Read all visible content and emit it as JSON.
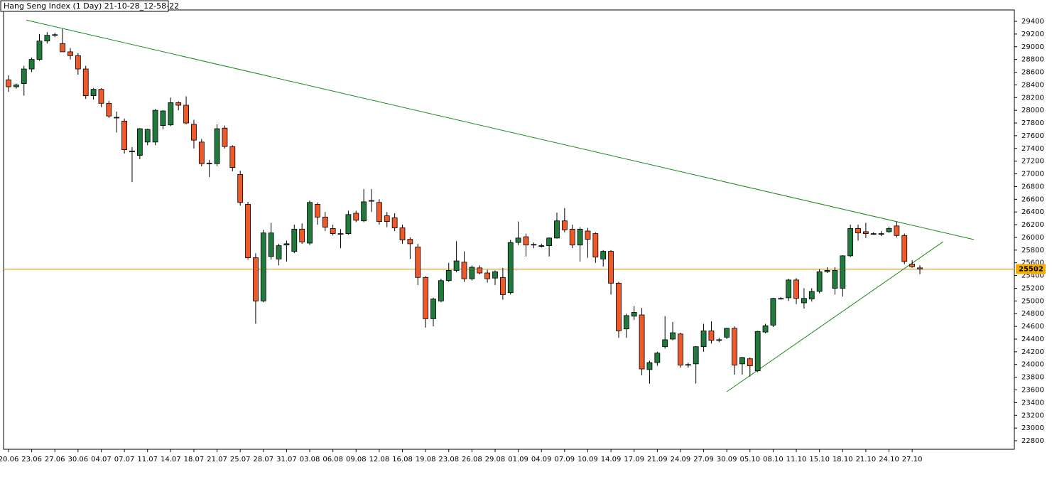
{
  "chart_data": {
    "type": "candlestick",
    "title": "Hang Seng Index (1 Day) 21-10-28_12-58-22",
    "categories": [
      "20.06",
      null,
      null,
      "23.06",
      null,
      null,
      "27.06",
      null,
      null,
      "30.06",
      null,
      null,
      "04.07",
      null,
      null,
      "07.07",
      null,
      null,
      "11.07",
      null,
      null,
      "14.07",
      null,
      null,
      "18.07",
      null,
      null,
      "21.07",
      null,
      null,
      "25.07",
      null,
      null,
      "28.07",
      null,
      null,
      "31.07",
      null,
      null,
      "03.08",
      null,
      null,
      "06.08",
      null,
      null,
      "09.08",
      null,
      null,
      "12.08",
      null,
      null,
      "16.08",
      null,
      null,
      "19.08",
      null,
      null,
      "23.08",
      null,
      null,
      "26.08",
      null,
      null,
      "29.08",
      null,
      null,
      "01.09",
      null,
      null,
      "04.09",
      null,
      null,
      "07.09",
      null,
      null,
      "10.09",
      null,
      null,
      "14.09",
      null,
      null,
      "17.09",
      null,
      null,
      "21.09",
      null,
      null,
      "24.09",
      null,
      null,
      "27.09",
      null,
      null,
      "30.09",
      null,
      null,
      "05.10",
      null,
      null,
      "08.10",
      null,
      null,
      "11.10",
      null,
      null,
      "15.10",
      null,
      null,
      "18.10",
      null,
      null,
      "21.10",
      null,
      null,
      "24.10",
      null,
      null,
      "27.10",
      null
    ],
    "open": [
      28480,
      28370,
      28420,
      28650,
      28800,
      29090,
      29180,
      29050,
      28920,
      28860,
      28650,
      28230,
      28330,
      28110,
      27880,
      27830,
      27350,
      27290,
      27500,
      27500,
      27760,
      27770,
      28120,
      28080,
      27780,
      27500,
      27160,
      27160,
      27720,
      27430,
      26990,
      26520,
      25680,
      25000,
      25700,
      25660,
      25880,
      25780,
      26130,
      25910,
      26520,
      26320,
      26140,
      26060,
      26060,
      26380,
      26260,
      26570,
      26550,
      26340,
      26310,
      26150,
      25970,
      25850,
      25370,
      24720,
      25000,
      25320,
      25480,
      25610,
      25350,
      25520,
      25440,
      25360,
      25370,
      25130,
      25920,
      26010,
      25890,
      25870,
      25870,
      25990,
      26260,
      26130,
      25880,
      26100,
      26060,
      25660,
      25780,
      25280,
      24560,
      24760,
      24780,
      23920,
      24030,
      24280,
      24400,
      24480,
      23990,
      24010,
      24280,
      24530,
      24380,
      24430,
      24570,
      24010,
      24090,
      23900,
      24510,
      24620,
      25040,
      25050,
      25330,
      24970,
      25030,
      25150,
      25460,
      25200,
      25200,
      25710,
      26140,
      26090,
      26060,
      26060,
      26090,
      26180,
      26030,
      25580,
      25520
    ],
    "high": [
      28550,
      28420,
      28700,
      28830,
      29200,
      29230,
      29220,
      29280,
      28980,
      28900,
      28700,
      28350,
      28350,
      28150,
      27980,
      27870,
      27420,
      27720,
      27710,
      28020,
      28000,
      28200,
      28140,
      28220,
      27850,
      27550,
      27220,
      27780,
      27760,
      27450,
      27050,
      26560,
      25750,
      26120,
      26230,
      25900,
      25950,
      26200,
      26220,
      26580,
      26550,
      26400,
      26200,
      26130,
      26420,
      26420,
      26760,
      26760,
      26600,
      26400,
      26380,
      26200,
      26000,
      25900,
      25390,
      25050,
      25350,
      25600,
      25940,
      25780,
      25560,
      25560,
      25490,
      25480,
      25520,
      25960,
      26250,
      26060,
      25920,
      25900,
      26000,
      26390,
      26460,
      26200,
      26160,
      26150,
      26080,
      25800,
      25800,
      25300,
      24800,
      24920,
      24890,
      24060,
      24200,
      24760,
      24670,
      24500,
      24030,
      24290,
      24640,
      24680,
      24420,
      24580,
      24600,
      24120,
      24110,
      24530,
      24640,
      25050,
      25060,
      25350,
      25360,
      25200,
      25200,
      25500,
      25530,
      25530,
      25720,
      26200,
      26200,
      26230,
      26080,
      26100,
      26170,
      26250,
      26060,
      25640,
      25560
    ],
    "low": [
      28290,
      28340,
      28230,
      28600,
      28780,
      29050,
      29150,
      28950,
      28800,
      28560,
      28180,
      28170,
      28050,
      27880,
      27650,
      27320,
      26870,
      27230,
      27450,
      27450,
      27700,
      27750,
      28000,
      27780,
      27400,
      27120,
      26950,
      27120,
      27400,
      27040,
      26500,
      25650,
      24640,
      24980,
      25650,
      25560,
      25620,
      25750,
      25900,
      25880,
      26200,
      26100,
      26030,
      25830,
      26040,
      26240,
      26240,
      26400,
      26200,
      26160,
      26100,
      25900,
      25660,
      25250,
      24580,
      24600,
      24980,
      25300,
      25450,
      25300,
      25320,
      25420,
      25290,
      25250,
      25020,
      25100,
      25880,
      25700,
      25830,
      25840,
      25700,
      25980,
      26080,
      25830,
      25620,
      25680,
      25600,
      25540,
      25100,
      24420,
      24420,
      24700,
      23830,
      23700,
      23980,
      24250,
      24380,
      23950,
      23950,
      23700,
      24200,
      24330,
      24350,
      24400,
      23840,
      23840,
      23810,
      23880,
      24490,
      24590,
      25030,
      25000,
      24950,
      24880,
      24990,
      25120,
      25440,
      25100,
      25070,
      25690,
      25950,
      25990,
      26040,
      26020,
      26070,
      26000,
      25580,
      25520,
      25420
    ],
    "close": [
      28370,
      28400,
      28650,
      28800,
      29090,
      29180,
      29190,
      28920,
      28860,
      28650,
      28230,
      28330,
      28110,
      27910,
      27890,
      27380,
      27360,
      27710,
      27700,
      28000,
      27990,
      28120,
      28080,
      27800,
      27530,
      27160,
      27170,
      27710,
      27430,
      27100,
      26550,
      25680,
      25000,
      26070,
      26070,
      25870,
      25900,
      26130,
      25930,
      26550,
      26320,
      26160,
      26060,
      26050,
      26360,
      26270,
      26560,
      26580,
      26250,
      26250,
      26150,
      25960,
      25900,
      25370,
      24720,
      25030,
      25320,
      25480,
      25630,
      25350,
      25530,
      25440,
      25350,
      25460,
      25100,
      25920,
      25990,
      25880,
      25880,
      25870,
      25990,
      26260,
      26120,
      25880,
      26130,
      25970,
      25690,
      25780,
      25280,
      24530,
      24770,
      24820,
      23930,
      24030,
      24180,
      24390,
      24500,
      23990,
      24000,
      24280,
      24530,
      24380,
      24390,
      24570,
      23990,
      24110,
      23980,
      24520,
      24610,
      25040,
      25040,
      25330,
      25040,
      25040,
      25150,
      25460,
      25480,
      25480,
      25710,
      26140,
      26070,
      26060,
      26060,
      26060,
      26140,
      26030,
      25620,
      25540,
      25502
    ],
    "up_color": "#1f7a3c",
    "down_color": "#f05a2a",
    "current_price": 25502,
    "current_price_color": "#d28c00",
    "current_price_label_color": "#f4b000",
    "trendlines": [
      {
        "points": [
          [
            2.3,
            29420
          ],
          [
            125,
            25966
          ]
        ]
      },
      {
        "points": [
          [
            93,
            23572
          ],
          [
            121,
            25932
          ]
        ]
      }
    ],
    "trendline_color": "#1a8a1a",
    "ylim": [
      22666,
      29579
    ],
    "yticks": [
      22800,
      23000,
      23200,
      23400,
      23600,
      23800,
      24000,
      24200,
      24400,
      24600,
      24800,
      25000,
      25200,
      25400,
      25600,
      25800,
      26000,
      26200,
      26400,
      26600,
      26800,
      27000,
      27200,
      27400,
      27600,
      27800,
      28000,
      28200,
      28400,
      28600,
      28800,
      29000,
      29200,
      29400
    ]
  }
}
